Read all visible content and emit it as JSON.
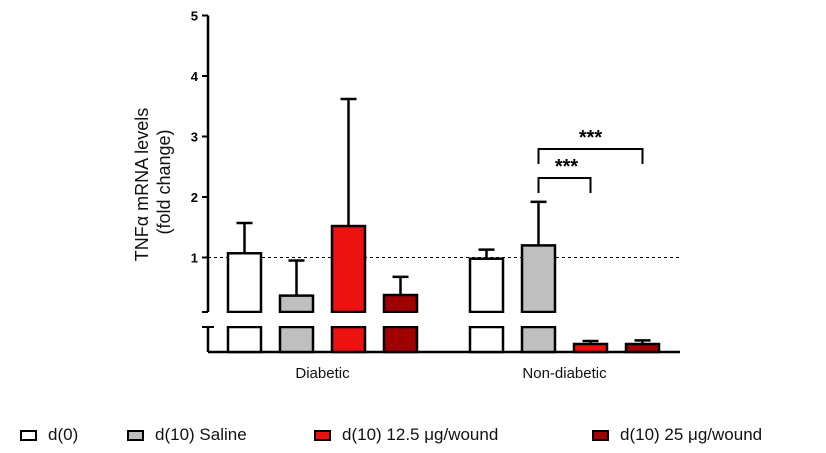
{
  "chart_data": {
    "type": "bar",
    "ylabel_line1": "TNFα mRNA levels",
    "ylabel_line2": "(fold change)",
    "yticks": [
      "1",
      "2",
      "3",
      "4",
      "5"
    ],
    "ylim": [
      0,
      5
    ],
    "y_axis_broken": true,
    "reference_line": 1,
    "categories": [
      "Diabetic",
      "Non-diabetic"
    ],
    "series": [
      {
        "name": "d(0)",
        "color": "#ffffff",
        "values": [
          1.07,
          0.98
        ],
        "errors": [
          0.5,
          0.15
        ]
      },
      {
        "name": "d(10) Saline",
        "color": "#bfbfbf",
        "values": [
          0.37,
          1.2
        ],
        "errors": [
          0.58,
          0.72
        ]
      },
      {
        "name": "d(10) 12.5 μg/wound",
        "color": "#ee1111",
        "values": [
          1.52,
          0.05
        ],
        "errors": [
          2.1,
          0.05
        ]
      },
      {
        "name": "d(10) 25 μg/wound",
        "color": "#a00000",
        "values": [
          0.38,
          0.04
        ],
        "errors": [
          0.3,
          0.06
        ]
      }
    ],
    "annotations": [
      {
        "text": "***",
        "group": "Non-diabetic",
        "from": "d(10) Saline",
        "to": "d(10) 12.5 μg/wound"
      },
      {
        "text": "***",
        "group": "Non-diabetic",
        "from": "d(10) Saline",
        "to": "d(10) 25 μg/wound"
      }
    ],
    "legend_position": "bottom"
  }
}
